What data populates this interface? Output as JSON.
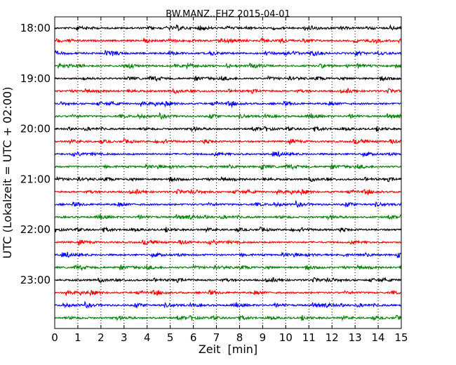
{
  "chart_data": {
    "type": "line",
    "title": "BW.MANZ..EHZ 2015-04-01",
    "xlabel": "Zeit  [min]",
    "ylabel": "UTC (Lokalzeit = UTC + 02:00)",
    "xlim": [
      0,
      15
    ],
    "x_ticks": [
      "0",
      "1",
      "2",
      "3",
      "4",
      "5",
      "6",
      "7",
      "8",
      "9",
      "10",
      "11",
      "12",
      "13",
      "14",
      "15"
    ],
    "y_tick_labels": [
      "18:00",
      "19:00",
      "20:00",
      "21:00",
      "22:00",
      "23:00"
    ],
    "traces_per_hour": 4,
    "trace_minutes": 15,
    "trace_start": "18:00",
    "trace_count": 24,
    "grid": "vertical dotted at each minute",
    "trace_colors": [
      "#000000",
      "#ff0000",
      "#0000ff",
      "#008000"
    ]
  }
}
